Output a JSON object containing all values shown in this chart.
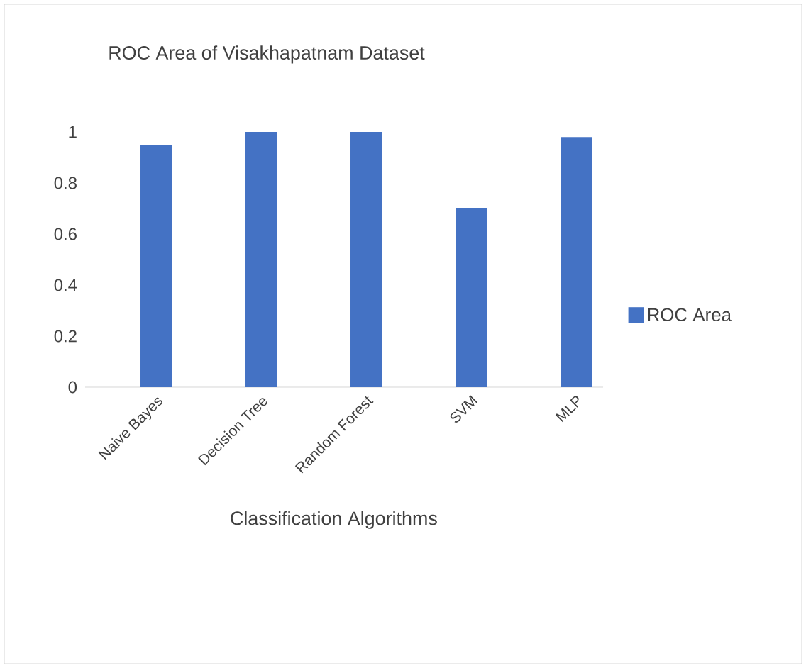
{
  "chart_data": {
    "type": "bar",
    "title": "ROC Area of Visakhapatnam Dataset",
    "xlabel": "Classification Algorithms",
    "categories": [
      "Naive Bayes",
      "Decision Tree",
      "Random Forest",
      "SVM",
      "MLP"
    ],
    "series": [
      {
        "name": "ROC Area",
        "color": "#4472c4",
        "values": [
          0.95,
          1.0,
          1.0,
          0.7,
          0.98
        ]
      }
    ],
    "ylim": [
      0,
      1
    ],
    "yticks": [
      0,
      {
        "value": 0.2,
        "label": "0.2"
      },
      {
        "value": 0.4,
        "label": "0.4"
      },
      {
        "value": 0.6,
        "label": "0.6"
      },
      {
        "value": 0.8,
        "label": "0.8"
      },
      1
    ],
    "grid": false,
    "legend": "right"
  }
}
